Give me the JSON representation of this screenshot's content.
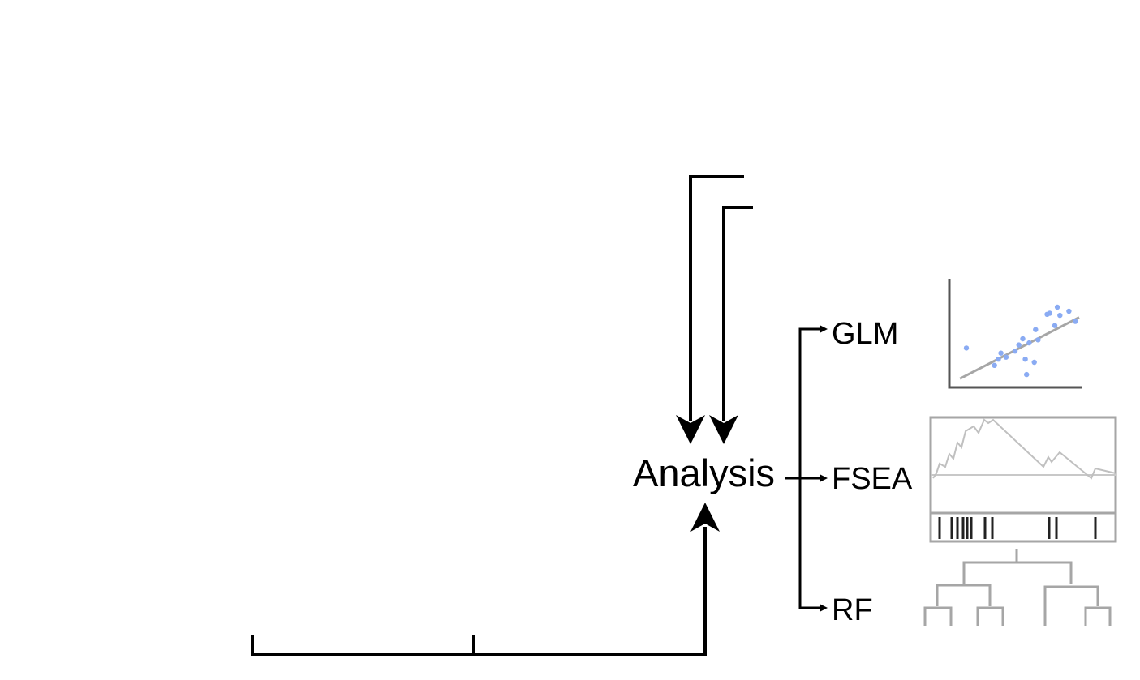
{
  "labels": {
    "analysis": "Analysis",
    "glm": "GLM",
    "fsea": "FSEA",
    "rf": "RF"
  },
  "colors": {
    "line": "#000000",
    "icon_gray": "#a6a6a6",
    "icon_dark": "#555555",
    "scatter_points": "#8aabf3",
    "barcode": "#222222"
  },
  "icons": {
    "glm": "scatter-regression-icon",
    "fsea": "enrichment-plot-icon",
    "rf": "dendrogram-icon"
  },
  "glm_scatter": {
    "points": [
      [
        0.12,
        0.37
      ],
      [
        0.34,
        0.2
      ],
      [
        0.37,
        0.26
      ],
      [
        0.39,
        0.32
      ],
      [
        0.43,
        0.28
      ],
      [
        0.5,
        0.34
      ],
      [
        0.53,
        0.4
      ],
      [
        0.56,
        0.46
      ],
      [
        0.58,
        0.26
      ],
      [
        0.59,
        0.11
      ],
      [
        0.61,
        0.42
      ],
      [
        0.65,
        0.23
      ],
      [
        0.66,
        0.55
      ],
      [
        0.68,
        0.45
      ],
      [
        0.75,
        0.7
      ],
      [
        0.77,
        0.71
      ],
      [
        0.81,
        0.59
      ],
      [
        0.83,
        0.77
      ],
      [
        0.85,
        0.69
      ],
      [
        0.92,
        0.73
      ],
      [
        0.97,
        0.63
      ]
    ],
    "fit": [
      [
        0.07,
        0.07
      ],
      [
        1.0,
        0.67
      ]
    ]
  }
}
